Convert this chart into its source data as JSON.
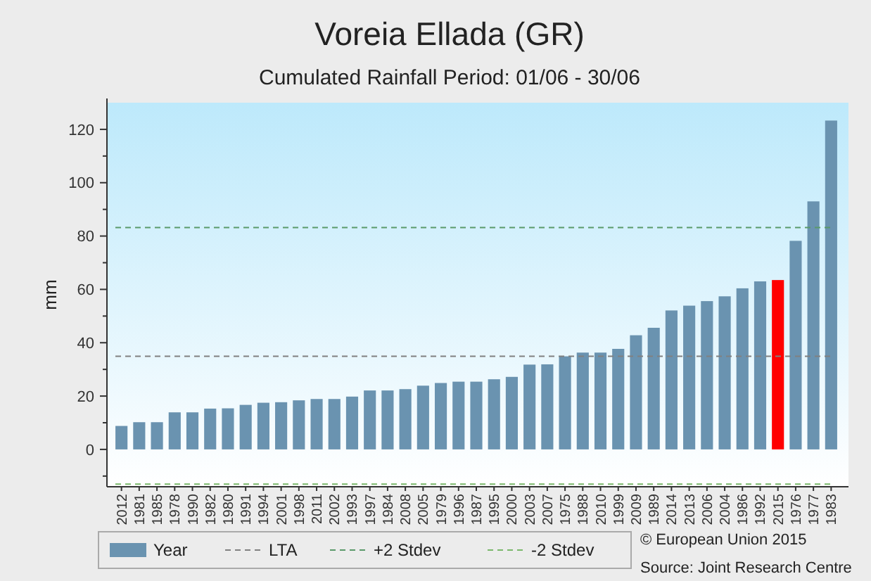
{
  "chart_data": {
    "type": "bar",
    "title": "Voreia Ellada (GR)",
    "subtitle": "Cumulated Rainfall  Period: 01/06 - 30/06",
    "ylabel": "mm",
    "categories": [
      "2012",
      "1981",
      "1985",
      "1978",
      "1990",
      "1982",
      "1980",
      "1991",
      "1994",
      "2001",
      "1998",
      "2011",
      "2002",
      "1993",
      "1997",
      "1984",
      "2008",
      "2005",
      "1979",
      "1996",
      "1987",
      "1995",
      "2000",
      "2003",
      "2007",
      "1975",
      "1988",
      "2010",
      "1999",
      "2009",
      "1989",
      "2014",
      "2013",
      "2006",
      "2004",
      "1986",
      "1992",
      "2015",
      "1976",
      "1977",
      "1983"
    ],
    "series": [
      {
        "name": "Year",
        "color": "#6a93b0",
        "values": [
          8.8,
          10.2,
          10.2,
          13.9,
          13.9,
          15.3,
          15.4,
          16.7,
          17.5,
          17.7,
          18.4,
          18.9,
          18.9,
          19.8,
          22.1,
          22.1,
          22.6,
          23.9,
          24.9,
          25.4,
          25.4,
          26.3,
          27.2,
          31.8,
          31.9,
          34.9,
          36.3,
          36.3,
          37.7,
          42.8,
          45.6,
          52.1,
          53.9,
          55.6,
          57.4,
          60.4,
          63.0,
          63.5,
          78.2,
          93.0,
          123.3
        ],
        "colors": [
          "#6a93b0",
          "#6a93b0",
          "#6a93b0",
          "#6a93b0",
          "#6a93b0",
          "#6a93b0",
          "#6a93b0",
          "#6a93b0",
          "#6a93b0",
          "#6a93b0",
          "#6a93b0",
          "#6a93b0",
          "#6a93b0",
          "#6a93b0",
          "#6a93b0",
          "#6a93b0",
          "#6a93b0",
          "#6a93b0",
          "#6a93b0",
          "#6a93b0",
          "#6a93b0",
          "#6a93b0",
          "#6a93b0",
          "#6a93b0",
          "#6a93b0",
          "#6a93b0",
          "#6a93b0",
          "#6a93b0",
          "#6a93b0",
          "#6a93b0",
          "#6a93b0",
          "#6a93b0",
          "#6a93b0",
          "#6a93b0",
          "#6a93b0",
          "#6a93b0",
          "#6a93b0",
          "#ff0000",
          "#6a93b0",
          "#6a93b0",
          "#6a93b0"
        ]
      }
    ],
    "ylim": [
      -14,
      130
    ],
    "yticks": [
      {
        "value": -10,
        "label": null
      },
      0,
      {
        "value": 10,
        "label": null
      },
      20,
      {
        "value": 30,
        "label": null
      },
      40,
      {
        "value": 50,
        "label": null
      },
      60,
      {
        "value": 70,
        "label": null
      },
      80,
      {
        "value": 90,
        "label": null
      },
      100,
      {
        "value": 110,
        "label": null
      },
      120
    ],
    "ref_lines": [
      {
        "axis": "y",
        "value": 34.9,
        "label": "LTA",
        "color": "#808080",
        "line_style": "dashed"
      },
      {
        "axis": "y",
        "value": 83.2,
        "label": "+2 Stdev",
        "color": "#5a9a6a",
        "line_style": "dashed"
      },
      {
        "axis": "y",
        "value": -13,
        "label": "-2 Stdev",
        "color": "#7ab86a",
        "line_style": "dashed"
      }
    ],
    "legend": "bottom",
    "annotations": [
      "© European Union 2015",
      "Source: Joint Research Centre"
    ]
  }
}
